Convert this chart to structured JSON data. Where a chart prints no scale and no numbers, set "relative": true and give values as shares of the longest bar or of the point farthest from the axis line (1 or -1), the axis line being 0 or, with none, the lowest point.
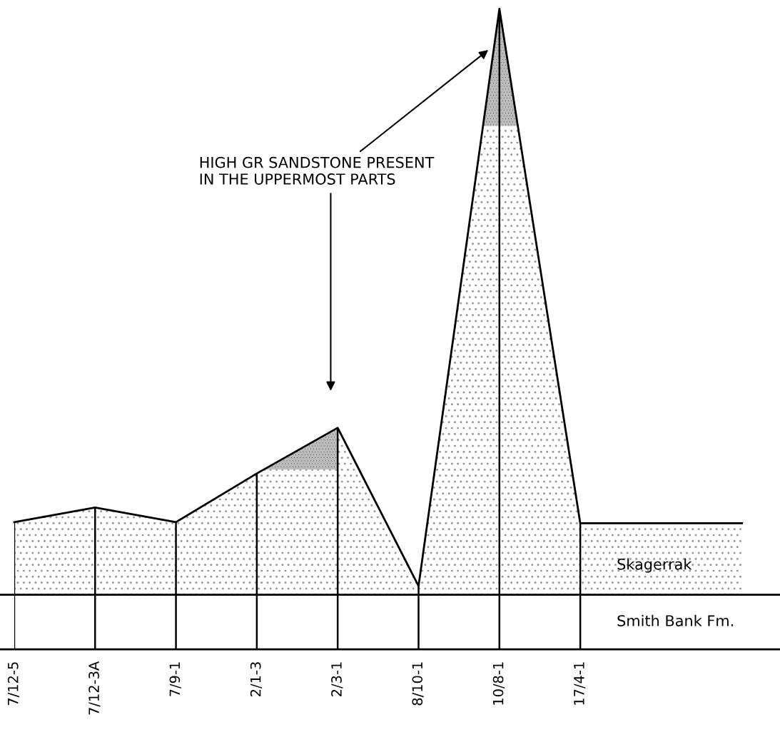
{
  "chart_data": {
    "type": "area",
    "relative": true,
    "categories": [
      "7/12-5",
      "7/12-3A",
      "7/9-1",
      "2/1-3",
      "2/3-1",
      "8/10-1",
      "10/8-1",
      "17/4-1",
      null,
      null
    ],
    "series": [
      {
        "color": "#000000",
        "values": [
          0.124,
          0.149,
          0.124,
          0.207,
          0.285,
          0.015,
          1,
          0.122,
          0.122,
          0.122
        ]
      }
    ],
    "grid": "x",
    "legend": false,
    "annotations": [
      "HIGH GR SANDSTONE PRESENT\nIN THE UPPERMOST PARTS",
      "Skagerrak",
      "Smith Bank Fm."
    ]
  }
}
